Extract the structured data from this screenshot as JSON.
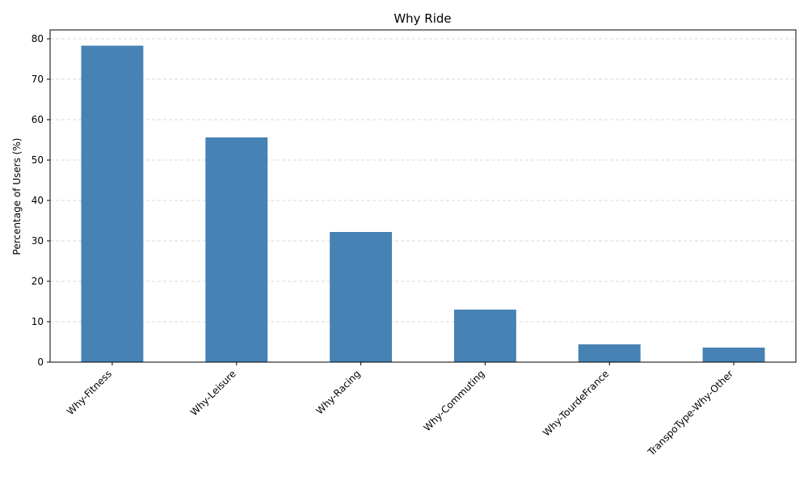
{
  "chart_data": {
    "type": "bar",
    "title": "Why Ride",
    "xlabel": "",
    "ylabel": "Percentage of Users (%)",
    "categories": [
      "Why-Fitness",
      "Why-Leisure",
      "Why-Racing",
      "Why-Commuting",
      "Why-TourdeFrance",
      "TranspoType-Why-Other"
    ],
    "values": [
      78.3,
      55.6,
      32.2,
      13.0,
      4.4,
      3.6
    ],
    "ylim": [
      0,
      82.2
    ],
    "yticks": [
      0,
      10,
      20,
      30,
      40,
      50,
      60,
      70,
      80
    ],
    "grid": "y-dashed",
    "colors": {
      "bar": "#4682b4",
      "grid": "#cccccc"
    }
  }
}
